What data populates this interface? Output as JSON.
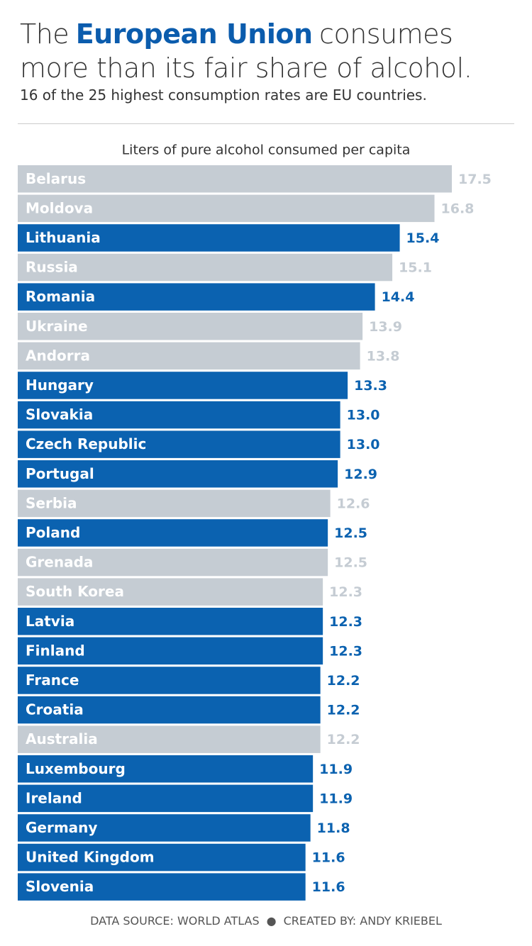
{
  "chart_data": {
    "type": "bar",
    "orientation": "horizontal",
    "title": {
      "before": "The",
      "highlight": "European Union",
      "after": "consumes more than its fair share of alcohol."
    },
    "subtitle": "16 of the 25 highest consumption rates are EU countries.",
    "x_label": "Liters of pure alcohol consumed per capita",
    "categories": [
      "Belarus",
      "Moldova",
      "Lithuania",
      "Russia",
      "Romania",
      "Ukraine",
      "Andorra",
      "Hungary",
      "Slovakia",
      "Czech Republic",
      "Portugal",
      "Serbia",
      "Poland",
      "Grenada",
      "South Korea",
      "Latvia",
      "Finland",
      "France",
      "Croatia",
      "Australia",
      "Luxembourg",
      "Ireland",
      "Germany",
      "United Kingdom",
      "Slovenia"
    ],
    "values": [
      17.5,
      16.8,
      15.4,
      15.1,
      14.4,
      13.9,
      13.8,
      13.3,
      13.0,
      13.0,
      12.9,
      12.6,
      12.5,
      12.5,
      12.3,
      12.3,
      12.3,
      12.2,
      12.2,
      12.2,
      11.9,
      11.9,
      11.8,
      11.6,
      11.6
    ],
    "value_labels": [
      "17.5",
      "16.8",
      "15.4",
      "15.1",
      "14.4",
      "13.9",
      "13.8",
      "13.3",
      "13.0",
      "13.0",
      "12.9",
      "12.6",
      "12.5",
      "12.5",
      "12.3",
      "12.3",
      "12.3",
      "12.2",
      "12.2",
      "12.2",
      "11.9",
      "11.9",
      "11.8",
      "11.6",
      "11.6"
    ],
    "colors": [
      "#c5ccd3",
      "#c5ccd3",
      "#0b62b0",
      "#c5ccd3",
      "#0b62b0",
      "#c5ccd3",
      "#c5ccd3",
      "#0b62b0",
      "#0b62b0",
      "#0b62b0",
      "#0b62b0",
      "#c5ccd3",
      "#0b62b0",
      "#c5ccd3",
      "#c5ccd3",
      "#0b62b0",
      "#0b62b0",
      "#0b62b0",
      "#0b62b0",
      "#c5ccd3",
      "#0b62b0",
      "#0b62b0",
      "#0b62b0",
      "#0b62b0",
      "#0b62b0"
    ],
    "source": "DATA SOURCE: WORLD ATLAS",
    "credit": "CREATED BY: ANDY KRIEBEL"
  }
}
